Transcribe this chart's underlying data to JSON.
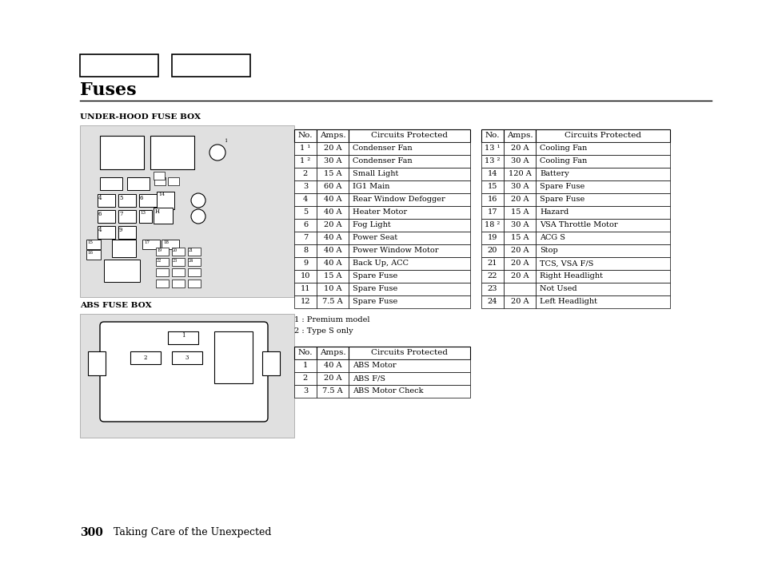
{
  "title": "Fuses",
  "page_label": "300",
  "page_subtitle": "Taking Care of the Unexpected",
  "section1_label": "UNDER-HOOD FUSE BOX",
  "section2_label": "ABS FUSE BOX",
  "footnote1": "1 : Premium model",
  "footnote2": "2 : Type S only",
  "table1_headers": [
    "No.",
    "Amps.",
    "Circuits Protected"
  ],
  "table1_rows": [
    [
      "1 ¹",
      "20 A",
      "Condenser Fan"
    ],
    [
      "1 ²",
      "30 A",
      "Condenser Fan"
    ],
    [
      "2",
      "15 A",
      "Small Light"
    ],
    [
      "3",
      "60 A",
      "IG1 Main"
    ],
    [
      "4",
      "40 A",
      "Rear Window Defogger"
    ],
    [
      "5",
      "40 A",
      "Heater Motor"
    ],
    [
      "6",
      "20 A",
      "Fog Light"
    ],
    [
      "7",
      "40 A",
      "Power Seat"
    ],
    [
      "8",
      "40 A",
      "Power Window Motor"
    ],
    [
      "9",
      "40 A",
      "Back Up, ACC"
    ],
    [
      "10",
      "15 A",
      "Spare Fuse"
    ],
    [
      "11",
      "10 A",
      "Spare Fuse"
    ],
    [
      "12",
      "7.5 A",
      "Spare Fuse"
    ]
  ],
  "table2_headers": [
    "No.",
    "Amps.",
    "Circuits Protected"
  ],
  "table2_rows": [
    [
      "13 ¹",
      "20 A",
      "Cooling Fan"
    ],
    [
      "13 ²",
      "30 A",
      "Cooling Fan"
    ],
    [
      "14",
      "120 A",
      "Battery"
    ],
    [
      "15",
      "30 A",
      "Spare Fuse"
    ],
    [
      "16",
      "20 A",
      "Spare Fuse"
    ],
    [
      "17",
      "15 A",
      "Hazard"
    ],
    [
      "18 ²",
      "30 A",
      "VSA Throttle Motor"
    ],
    [
      "19",
      "15 A",
      "ACG S"
    ],
    [
      "20",
      "20 A",
      "Stop"
    ],
    [
      "21",
      "20 A",
      "TCS, VSA F/S"
    ],
    [
      "22",
      "20 A",
      "Right Headlight"
    ],
    [
      "23",
      "",
      "Not Used"
    ],
    [
      "24",
      "20 A",
      "Left Headlight"
    ]
  ],
  "table3_headers": [
    "No.",
    "Amps.",
    "Circuits Protected"
  ],
  "table3_rows": [
    [
      "1",
      "40 A",
      "ABS Motor"
    ],
    [
      "2",
      "20 A",
      "ABS F/S"
    ],
    [
      "3",
      "7.5 A",
      "ABS Motor Check"
    ]
  ],
  "bg_color": "#ffffff"
}
